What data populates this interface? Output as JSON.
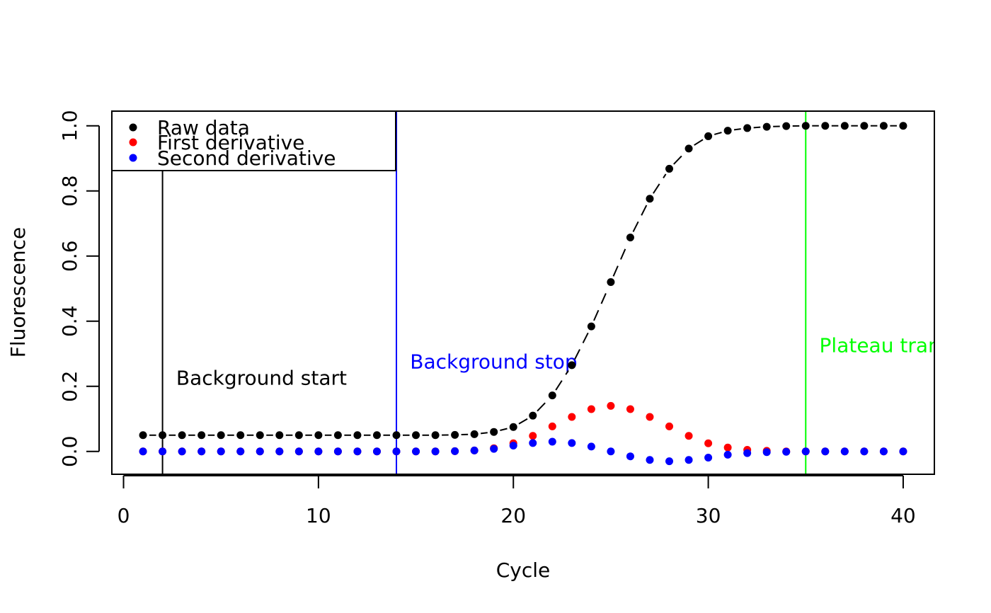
{
  "chart_data": {
    "type": "scatter",
    "title": "",
    "xlabel": "Cycle",
    "ylabel": "Fluorescence",
    "xlim": [
      -0.6,
      41.6
    ],
    "ylim": [
      -0.07,
      1.045
    ],
    "xticks": [
      0,
      10,
      20,
      30,
      40
    ],
    "xtick_labels": [
      "0",
      "10",
      "20",
      "30",
      "40"
    ],
    "yticks": [
      0.0,
      0.2,
      0.4,
      0.6,
      0.8,
      1.0
    ],
    "ytick_labels": [
      "0.0",
      "0.2",
      "0.4",
      "0.6",
      "0.8",
      "1.0"
    ],
    "grid": false,
    "legend": {
      "placement": "top-left",
      "entries": [
        {
          "label": "Raw data",
          "color": "#000000"
        },
        {
          "label": "First derivative",
          "color": "#ff0000"
        },
        {
          "label": "Second derivative",
          "color": "#0000ff"
        }
      ]
    },
    "x": [
      1,
      2,
      3,
      4,
      5,
      6,
      7,
      8,
      9,
      10,
      11,
      12,
      13,
      14,
      15,
      16,
      17,
      18,
      19,
      20,
      21,
      22,
      23,
      24,
      25,
      26,
      27,
      28,
      29,
      30,
      31,
      32,
      33,
      34,
      35,
      36,
      37,
      38,
      39,
      40
    ],
    "series": [
      {
        "name": "Raw data",
        "color": "#000000",
        "values": [
          0.05,
          0.05,
          0.05,
          0.05,
          0.05,
          0.05,
          0.05,
          0.05,
          0.05,
          0.05,
          0.05,
          0.05,
          0.05,
          0.05,
          0.05,
          0.05,
          0.051,
          0.053,
          0.06,
          0.075,
          0.11,
          0.172,
          0.265,
          0.384,
          0.52,
          0.657,
          0.776,
          0.868,
          0.93,
          0.968,
          0.985,
          0.993,
          0.997,
          0.999,
          1.0,
          1.0,
          1.0,
          1.0,
          1.0,
          1.0
        ],
        "connector": "dashed"
      },
      {
        "name": "First derivative",
        "color": "#ff0000",
        "values": [
          0,
          0,
          0,
          0,
          0,
          0,
          0,
          0,
          0,
          0,
          0,
          0,
          0,
          0,
          0,
          0,
          0.001,
          0.003,
          0.01,
          0.025,
          0.048,
          0.077,
          0.106,
          0.13,
          0.14,
          0.13,
          0.106,
          0.077,
          0.048,
          0.025,
          0.012,
          0.005,
          0.002,
          0,
          0,
          0,
          0,
          0,
          0,
          0
        ]
      },
      {
        "name": "Second derivative",
        "color": "#0000ff",
        "values": [
          0,
          0,
          0,
          0,
          0,
          0,
          0,
          0,
          0,
          0,
          0,
          0,
          0,
          0,
          0,
          0,
          0.001,
          0.003,
          0.008,
          0.018,
          0.026,
          0.03,
          0.026,
          0.015,
          0,
          -0.015,
          -0.026,
          -0.03,
          -0.026,
          -0.019,
          -0.01,
          -0.005,
          -0.002,
          -0.001,
          0,
          0,
          0,
          0,
          0,
          0
        ]
      }
    ],
    "vlines": [
      {
        "x": 2,
        "color": "#000000",
        "label": "Background start",
        "label_x": 2.7,
        "label_y": 0.205
      },
      {
        "x": 14,
        "color": "#0000ff",
        "label": "Background stop",
        "label_x": 14.7,
        "label_y": 0.255
      },
      {
        "x": 35,
        "color": "#00ff00",
        "label": "Plateau transition",
        "label_x": 35.7,
        "label_y": 0.305
      }
    ]
  }
}
